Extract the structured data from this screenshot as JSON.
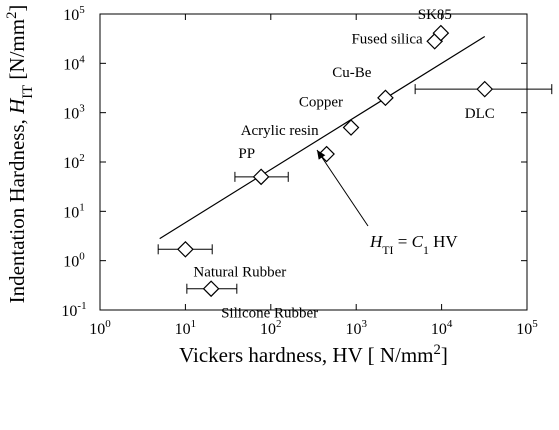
{
  "chart_data": {
    "type": "scatter",
    "xlabel": [
      {
        "t": "Vickers hardness, HV [ N/mm"
      },
      {
        "t": "2",
        "sup": true
      },
      {
        "t": "]"
      }
    ],
    "ylabel": [
      {
        "t": "Indentation Hardness, "
      },
      {
        "t": "H",
        "it": true
      },
      {
        "t": "IT",
        "sub": true
      },
      {
        "t": " [N/mm"
      },
      {
        "t": "2",
        "sup": true
      },
      {
        "t": "]"
      }
    ],
    "log_x": true,
    "log_y": true,
    "xlim": [
      1,
      100000
    ],
    "ylim": [
      0.1,
      100000
    ],
    "xticks": [
      {
        "value": 1,
        "label": "10",
        "exp": "0"
      },
      {
        "value": 10,
        "label": "10",
        "exp": "1"
      },
      {
        "value": 100,
        "label": "10",
        "exp": "2"
      },
      {
        "value": 1000,
        "label": "10",
        "exp": "3"
      },
      {
        "value": 10000,
        "label": "10",
        "exp": "4"
      },
      {
        "value": 100000,
        "label": "10",
        "exp": "5"
      }
    ],
    "yticks": [
      {
        "value": 0.1,
        "label": "10",
        "exp": "-1"
      },
      {
        "value": 1,
        "label": "10",
        "exp": "0"
      },
      {
        "value": 10,
        "label": "10",
        "exp": "1"
      },
      {
        "value": 100,
        "label": "10",
        "exp": "2"
      },
      {
        "value": 1000,
        "label": "10",
        "exp": "3"
      },
      {
        "value": 10000,
        "label": "10",
        "exp": "4"
      },
      {
        "value": 100000,
        "label": "10",
        "exp": "5"
      }
    ],
    "names": [
      "PP",
      "Acrylic resin",
      "Copper",
      "Cu-Be",
      "Fused silica",
      "SK85",
      "DLC",
      "Natural Rubber",
      "Silicone Rubber"
    ],
    "x": [
      77,
      450,
      870,
      2200,
      8300,
      9800,
      32000,
      10,
      20
    ],
    "values": [
      50,
      145,
      500,
      2000,
      28000,
      41000,
      3000,
      1.7,
      0.27
    ],
    "x_low": [
      38,
      null,
      null,
      null,
      null,
      null,
      4900,
      4.8,
      10.4
    ],
    "x_high": [
      160,
      null,
      null,
      null,
      null,
      null,
      195000,
      20.6,
      40
    ],
    "fit_line": {
      "x": [
        5,
        32000
      ],
      "values": [
        2.8,
        35000
      ]
    },
    "annotation": [
      {
        "t": "H",
        "it": true
      },
      {
        "t": "TI",
        "sub": true
      },
      {
        "t": " = "
      },
      {
        "t": "C",
        "it": true
      },
      {
        "t": "1",
        "sub": true
      },
      {
        "t": " HV"
      }
    ],
    "color": "#000000"
  }
}
